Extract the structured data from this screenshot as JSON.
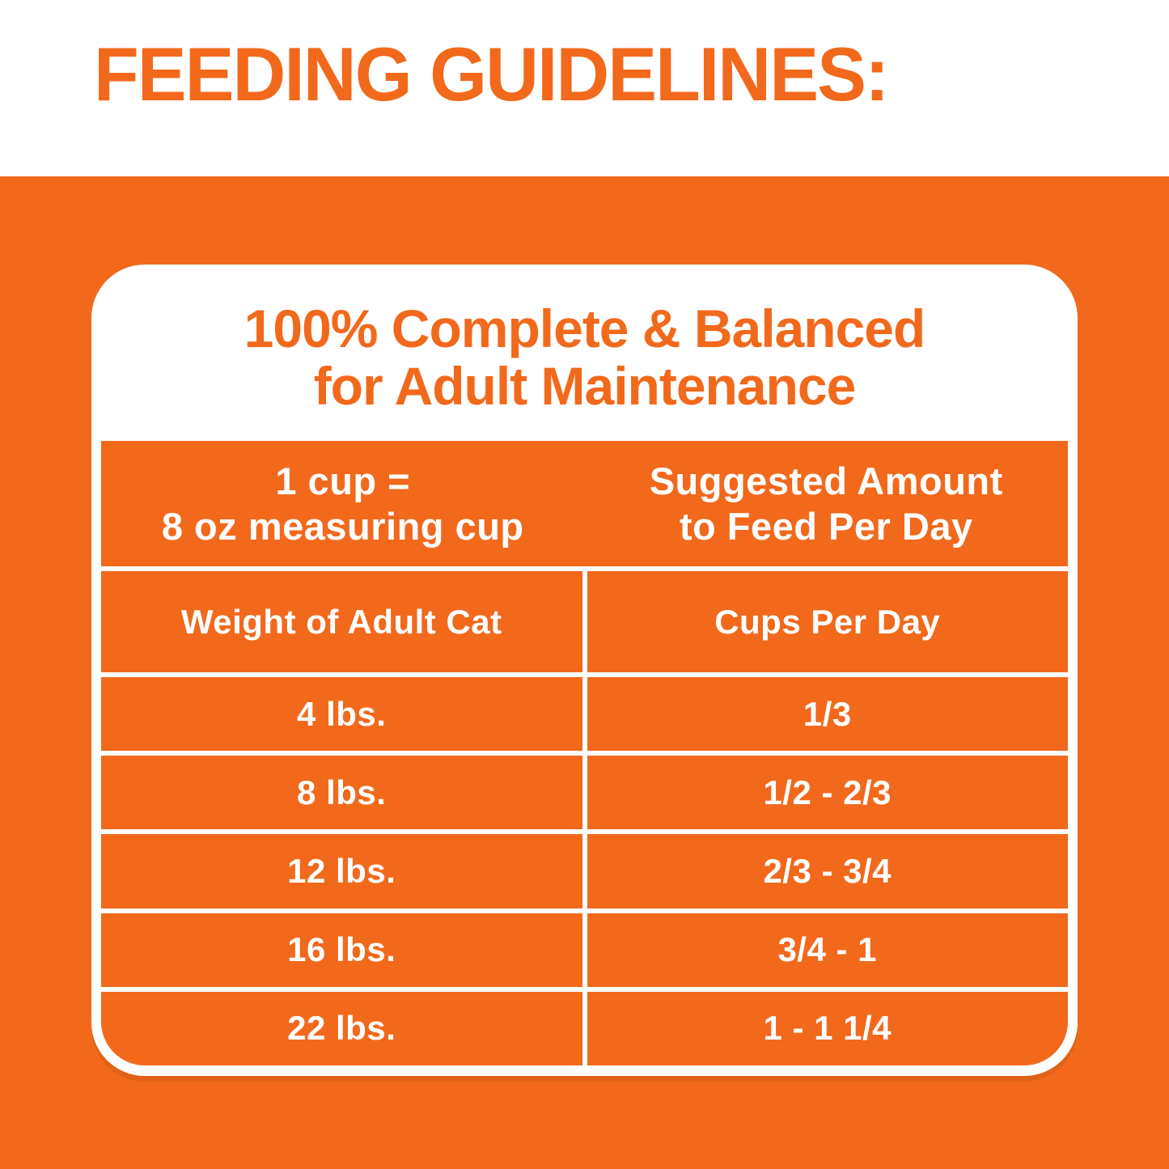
{
  "page": {
    "heading": "FEEDING GUIDELINES:"
  },
  "card": {
    "title_line1": "100% Complete & Balanced",
    "title_line2": "for Adult Maintenance",
    "header": {
      "left_line1": "1 cup =",
      "left_line2": "8 oz measuring cup",
      "right_line1": "Suggested Amount",
      "right_line2": "to Feed Per Day"
    },
    "columns": [
      "Weight of Adult Cat",
      "Cups Per Day"
    ],
    "rows": [
      {
        "weight": "4 lbs.",
        "cups": "1/3"
      },
      {
        "weight": "8 lbs.",
        "cups": "1/2 - 2/3"
      },
      {
        "weight": "12 lbs.",
        "cups": "2/3 - 3/4"
      },
      {
        "weight": "16 lbs.",
        "cups": "3/4 - 1"
      },
      {
        "weight": "22 lbs.",
        "cups": "1 - 1 1/4"
      }
    ]
  },
  "colors": {
    "orange": "#F2691C",
    "white": "#FFFFFF"
  }
}
